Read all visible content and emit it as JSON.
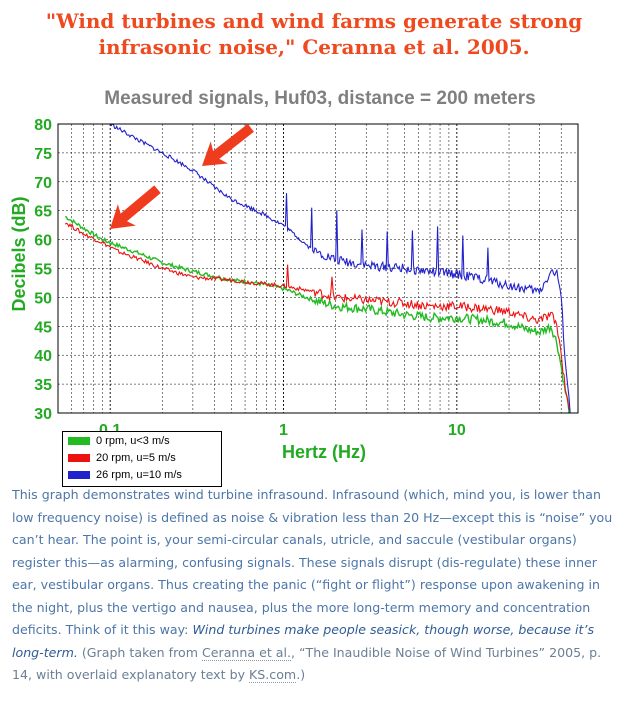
{
  "headline": {
    "line1": "\"Wind turbines and wind farms generate strong",
    "line2": "infrasonic noise,\" Ceranna et al. 2005."
  },
  "caption": {
    "body": "This graph demonstrates wind turbine infrasound. Infrasound (which, mind you, is lower than low frequency noise) is defined as noise & vibration less than 20 Hz—except this is “noise” you can’t hear. The point is, your semi-circular canals, utricle, and saccule (vestibular organs) register this—as alarming, confusing signals. These signals disrupt (dis-regulate) these inner ear, vestibular organs. Thus creating the panic (“fight or flight”) response upon awakening in the night, plus the vertigo and nausea, plus the more long-term memory and concentration deficits. Think of it this way:",
    "emphasis": "Wind turbines make people seasick, though worse, because it’s long-term.",
    "source_prefix": "(Graph taken from",
    "source_author": "Ceranna et al.",
    "source_title": ", “The Inaudible Noise of Wind Turbines” 2005, p. 14",
    "source_mid": ", with overlaid explanatory text by",
    "source_site": "KS.com",
    "source_end": ".)"
  },
  "colors": {
    "headline": "#ef4a1f",
    "axis_label": "#22aa22",
    "series_green": "#22bb22",
    "series_red": "#ee1111",
    "series_blue": "#2222cc",
    "arrow": "#f03c1e",
    "caption": "#4d76a8"
  },
  "chart_data": {
    "type": "line",
    "title": "Measured signals, Huf03, distance = 200 meters",
    "xlabel": "Hertz (Hz)",
    "ylabel": "Decibels (dB)",
    "x_scale": "log",
    "xlim": [
      0.05,
      50
    ],
    "ylim": [
      30,
      80
    ],
    "x_ticks": [
      0.1,
      1,
      10
    ],
    "x_tick_labels": [
      "0.1",
      "1",
      "10"
    ],
    "y_ticks": [
      30,
      35,
      40,
      45,
      50,
      55,
      60,
      65,
      70,
      75,
      80
    ],
    "y_tick_labels": [
      "30",
      "35",
      "40",
      "45",
      "50",
      "55",
      "60",
      "65",
      "70",
      "75",
      "80"
    ],
    "grid": true,
    "legend_position": "bottom-left",
    "annotations": [
      {
        "type": "arrow",
        "points_to": "blue series near 0.3 Hz"
      },
      {
        "type": "arrow",
        "points_to": "low-frequency onset near 0.1 Hz"
      }
    ],
    "series": [
      {
        "name": "0 rpm, u<3 m/s",
        "color": "#22bb22",
        "x": [
          0.055,
          0.07,
          0.09,
          0.11,
          0.15,
          0.2,
          0.3,
          0.5,
          0.7,
          1,
          1.5,
          2,
          3,
          5,
          7,
          10,
          15,
          20,
          25,
          30,
          35,
          38,
          40,
          42,
          45
        ],
        "y": [
          64,
          62,
          60,
          59,
          57.5,
          56,
          54.5,
          53,
          52.5,
          51.5,
          49.5,
          48.5,
          48,
          47,
          46.5,
          46.5,
          46,
          45.5,
          44.5,
          44,
          45,
          42,
          38,
          34,
          30
        ]
      },
      {
        "name": "20 rpm, u=5 m/s",
        "color": "#ee1111",
        "x": [
          0.055,
          0.07,
          0.09,
          0.11,
          0.15,
          0.2,
          0.3,
          0.5,
          0.7,
          1,
          1.5,
          2,
          3,
          5,
          7,
          10,
          15,
          20,
          25,
          30,
          35,
          38,
          40,
          42,
          45
        ],
        "y": [
          63,
          61,
          59.5,
          58,
          56.5,
          55,
          53.5,
          53,
          52.5,
          52,
          51,
          50,
          49.5,
          49,
          48.5,
          48.5,
          48,
          47.5,
          46.5,
          46,
          47,
          45,
          40,
          35,
          30
        ]
      },
      {
        "name": "26 rpm, u=10 m/s",
        "color": "#2222cc",
        "x": [
          0.1,
          0.15,
          0.2,
          0.3,
          0.4,
          0.5,
          0.7,
          1,
          1.5,
          2,
          3,
          5,
          7,
          10,
          15,
          20,
          25,
          30,
          35,
          38,
          40,
          42,
          45
        ],
        "y": [
          80,
          77,
          75,
          72,
          69,
          67,
          65,
          62.5,
          58,
          56.5,
          55.5,
          55,
          54.5,
          54,
          53,
          52,
          51.5,
          51,
          54.5,
          54,
          50,
          40,
          30
        ]
      }
    ]
  }
}
